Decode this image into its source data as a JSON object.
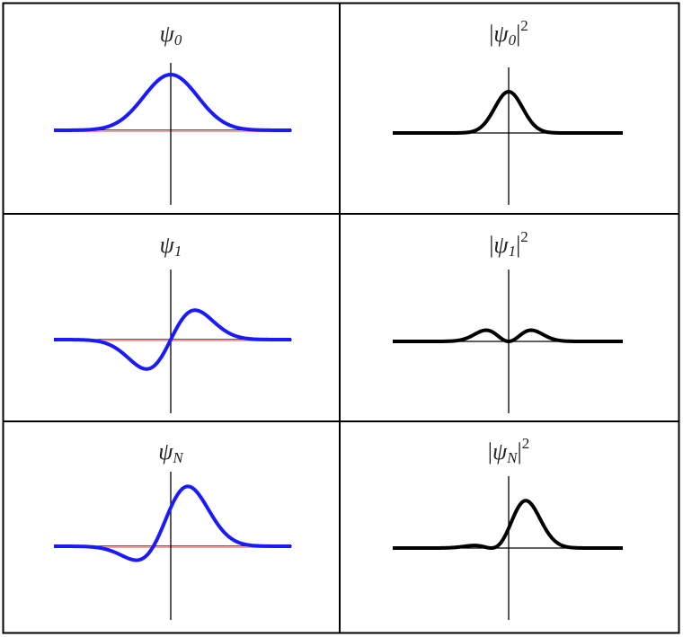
{
  "cells": [
    {
      "label": {
        "symbol": "ψ",
        "subscript": "0"
      }
    },
    {
      "label": {
        "open": "|",
        "symbol": "ψ",
        "subscript": "0",
        "close": "|",
        "superscript": "2"
      }
    },
    {
      "label": {
        "symbol": "ψ",
        "subscript": "1"
      }
    },
    {
      "label": {
        "open": "|",
        "symbol": "ψ",
        "subscript": "1",
        "close": "|",
        "superscript": "2"
      }
    },
    {
      "label": {
        "symbol": "ψ",
        "subscript": "N"
      }
    },
    {
      "label": {
        "open": "|",
        "symbol": "ψ",
        "subscript": "N",
        "close": "|",
        "superscript": "2"
      }
    }
  ]
}
